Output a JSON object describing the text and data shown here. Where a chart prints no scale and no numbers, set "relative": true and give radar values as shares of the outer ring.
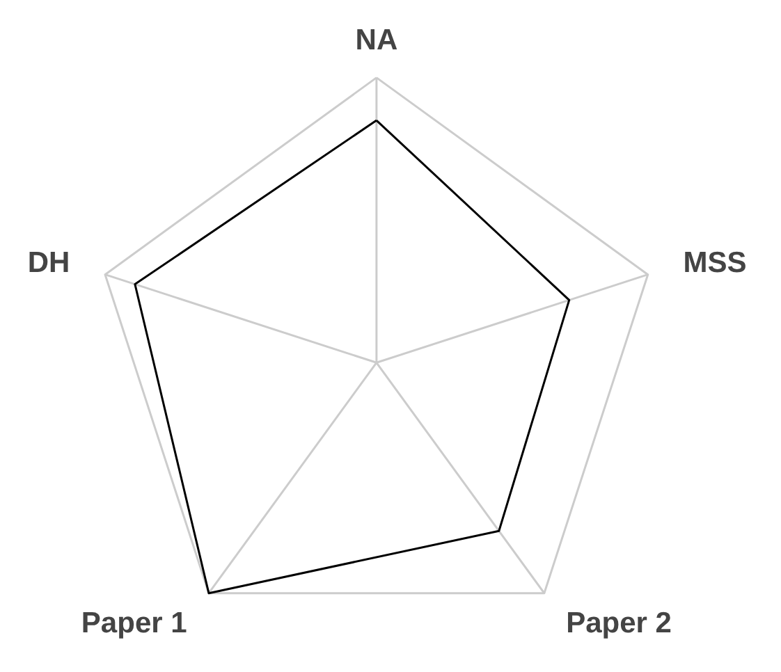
{
  "chart_data": {
    "type": "radar",
    "categories": [
      "NA",
      "MSS",
      "Paper 2",
      "Paper 1",
      "DH"
    ],
    "relative": true,
    "grid": true,
    "series": [
      {
        "color": "#000000",
        "values": [
          0.85,
          0.71,
          0.73,
          1,
          0.89
        ]
      }
    ]
  }
}
